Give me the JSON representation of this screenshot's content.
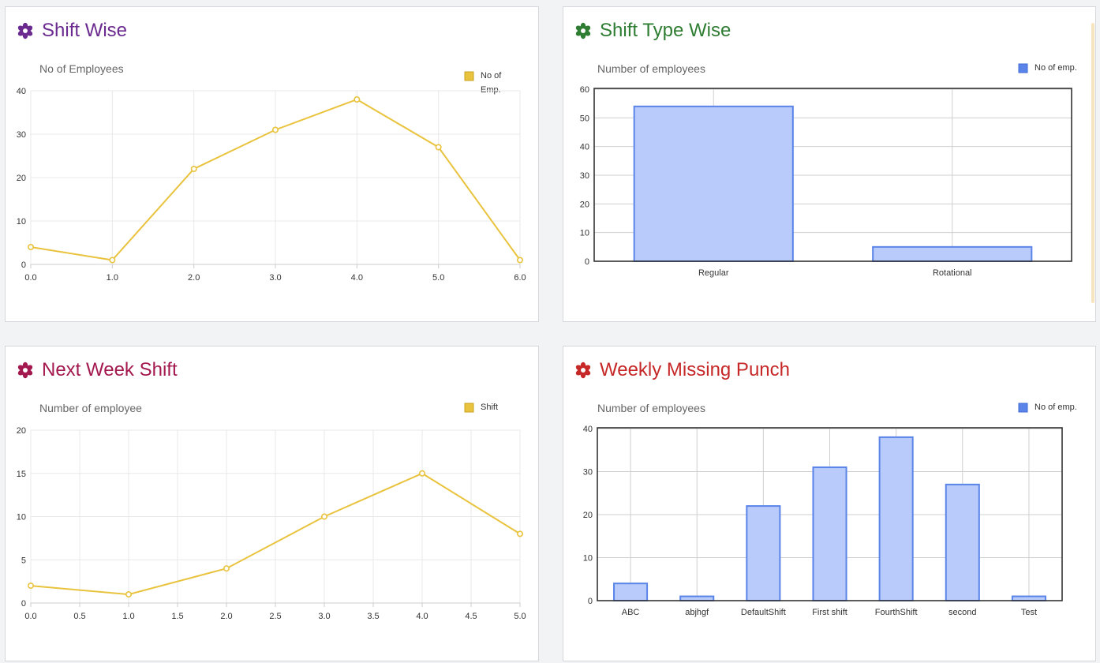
{
  "panels": [
    {
      "title": "Shift Wise",
      "title_color": "#6a2a8f",
      "icon": "gear-flower-icon",
      "chart_data": {
        "type": "line",
        "ylabel": "No of Employees",
        "xlabel": "",
        "x": [
          0,
          1,
          2,
          3,
          4,
          5,
          6
        ],
        "xticks": [
          "0.0",
          "1.0",
          "2.0",
          "3.0",
          "4.0",
          "5.0",
          "6.0"
        ],
        "xlim": [
          0,
          6
        ],
        "ylim": [
          0,
          40
        ],
        "yticks": [
          0,
          10,
          20,
          30,
          40
        ],
        "series": [
          {
            "name": "No of Emp.",
            "values": [
              4,
              1,
              22,
              31,
              38,
              27,
              1
            ]
          }
        ],
        "legend_lines": [
          "No of",
          "Emp."
        ],
        "legend_position": "top-right",
        "color": "#e9c33d",
        "grid": true
      }
    },
    {
      "title": "Shift Type Wise",
      "title_color": "#2e7d32",
      "icon": "gear-flower-icon",
      "chart_data": {
        "type": "bar",
        "ylabel": "Number of employees",
        "xlabel": "",
        "categories": [
          "Regular",
          "Rotational"
        ],
        "ylim": [
          0,
          60
        ],
        "yticks": [
          0,
          10,
          20,
          30,
          40,
          50,
          60
        ],
        "series": [
          {
            "name": "No of emp.",
            "values": [
              54,
              5
            ]
          }
        ],
        "legend_lines": [
          "No of emp."
        ],
        "legend_position": "top-right",
        "color": "#5b84e8",
        "fill": "#b8cbfb",
        "grid": true
      }
    },
    {
      "title": "Next Week Shift",
      "title_color": "#a3194f",
      "icon": "gear-flower-icon",
      "chart_data": {
        "type": "line",
        "ylabel": "Number of employee",
        "xlabel": "",
        "x": [
          0,
          1,
          2,
          3,
          4,
          5
        ],
        "xticks": [
          "0.0",
          "0.5",
          "1.0",
          "1.5",
          "2.0",
          "2.5",
          "3.0",
          "3.5",
          "4.0",
          "4.5",
          "5.0"
        ],
        "xlim": [
          0,
          5
        ],
        "ylim": [
          0,
          20
        ],
        "yticks": [
          0,
          5,
          10,
          15,
          20
        ],
        "series": [
          {
            "name": "Shift",
            "values": [
              2,
              1,
              4,
              10,
              15,
              8
            ]
          }
        ],
        "legend_lines": [
          "Shift"
        ],
        "legend_position": "top-right",
        "color": "#e9c33d",
        "grid": true
      }
    },
    {
      "title": "Weekly Missing Punch",
      "title_color": "#c62828",
      "icon": "gear-flower-icon",
      "chart_data": {
        "type": "bar",
        "ylabel": "Number of employees",
        "xlabel": "",
        "categories": [
          "ABC",
          "abjhgf",
          "DefaultShift",
          "First shift",
          "FourthShift",
          "second",
          "Test"
        ],
        "ylim": [
          0,
          40
        ],
        "yticks": [
          0,
          10,
          20,
          30,
          40
        ],
        "series": [
          {
            "name": "No of emp.",
            "values": [
              4,
              1,
              22,
              31,
              38,
              27,
              1
            ]
          }
        ],
        "legend_lines": [
          "No of emp."
        ],
        "legend_position": "top-right",
        "color": "#5b84e8",
        "fill": "#b8cbfb",
        "grid": true
      }
    }
  ]
}
